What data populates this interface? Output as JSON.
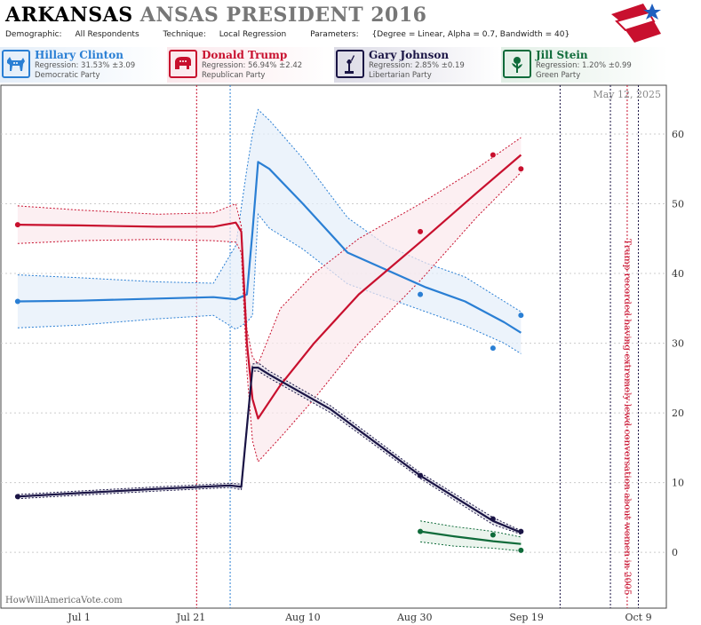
{
  "header": {
    "title_state": "ARKANSAS",
    "title_rest": "ANSAS PRESIDENT 2016",
    "demographic_label": "Demographic:",
    "demographic_value": "All Respondents",
    "technique_label": "Technique:",
    "technique_value": "Local Regression",
    "parameters_label": "Parameters:",
    "parameters_value": "{Degree = Linear, Alpha = 0.7, Bandwidth = 40}"
  },
  "candidates": [
    {
      "name": "Hillary Clinton",
      "regression": "Regression: 31.53% ±3.09",
      "party": "Democratic Party",
      "color": "#2a7fd4",
      "icon": "donkey-icon"
    },
    {
      "name": "Donald Trump",
      "regression": "Regression: 56.94% ±2.42",
      "party": "Republican Party",
      "color": "#c8102e",
      "icon": "elephant-icon"
    },
    {
      "name": "Gary Johnson",
      "regression": "Regression: 2.85% ±0.19",
      "party": "Libertarian Party",
      "color": "#1a1445",
      "icon": "liberty-statue-icon"
    },
    {
      "name": "Jill Stein",
      "regression": "Regression: 1.20% ±0.99",
      "party": "Green Party",
      "color": "#0f6b3a",
      "icon": "rose-icon"
    }
  ],
  "chart_data": {
    "type": "line",
    "date_label": "May 12, 2025",
    "watermark": "HowWillAmericaVote.com",
    "annotation": "Trump recorded having extremely lewd conversation about women in 2005",
    "x_ticks": [
      "Jul 1",
      "Jul 21",
      "Aug 10",
      "Aug 30",
      "Sep 19",
      "Oct 9"
    ],
    "y_ticks": [
      0,
      10,
      20,
      30,
      40,
      50,
      60
    ],
    "ylim": [
      -8,
      67
    ],
    "xlim": [
      "2016-06-17",
      "2016-10-14"
    ],
    "vertical_lines": [
      {
        "date": "2016-07-22",
        "color": "#c8102e"
      },
      {
        "date": "2016-07-28",
        "color": "#2a7fd4"
      },
      {
        "date": "2016-09-25",
        "color": "#1a1445"
      },
      {
        "date": "2016-10-04",
        "color": "#1a1445"
      },
      {
        "date": "2016-10-07",
        "color": "#c8102e"
      },
      {
        "date": "2016-10-09",
        "color": "#1a1445"
      }
    ],
    "series": [
      {
        "name": "Hillary Clinton",
        "color": "#2a7fd4",
        "fill": "#e4eef9",
        "x": [
          "2016-06-20",
          "2016-07-01",
          "2016-07-15",
          "2016-07-25",
          "2016-07-29",
          "2016-07-31",
          "2016-08-01",
          "2016-08-02",
          "2016-08-04",
          "2016-08-10",
          "2016-08-18",
          "2016-08-25",
          "2016-09-01",
          "2016-09-08",
          "2016-09-15",
          "2016-09-18"
        ],
        "y": [
          36.0,
          36.1,
          36.4,
          36.6,
          36.3,
          37.0,
          46.0,
          56.0,
          55.0,
          50.0,
          43.0,
          40.5,
          38.0,
          36.0,
          33.0,
          31.5
        ],
        "upper": [
          39.8,
          39.4,
          38.8,
          38.6,
          44.0,
          55.0,
          60.0,
          63.5,
          62.0,
          56.5,
          48.0,
          44.0,
          41.5,
          39.5,
          36.0,
          34.5
        ],
        "lower": [
          32.2,
          32.6,
          33.5,
          34.0,
          32.0,
          33.0,
          34.0,
          48.5,
          46.5,
          43.5,
          38.5,
          36.5,
          34.5,
          32.5,
          30.0,
          28.5
        ],
        "points": [
          [
            "2016-06-20",
            36
          ],
          [
            "2016-08-31",
            37
          ],
          [
            "2016-09-13",
            29.3
          ],
          [
            "2016-09-18",
            34
          ]
        ]
      },
      {
        "name": "Donald Trump",
        "color": "#c8102e",
        "fill": "#fbe8ec",
        "x": [
          "2016-06-20",
          "2016-07-01",
          "2016-07-15",
          "2016-07-25",
          "2016-07-29",
          "2016-07-30",
          "2016-07-31",
          "2016-08-01",
          "2016-08-02",
          "2016-08-06",
          "2016-08-12",
          "2016-08-20",
          "2016-08-31",
          "2016-09-10",
          "2016-09-18"
        ],
        "y": [
          47.0,
          46.9,
          46.7,
          46.7,
          47.3,
          46.0,
          30.0,
          22.0,
          19.2,
          24.0,
          30.0,
          37.0,
          44.5,
          51.5,
          57.0
        ],
        "upper": [
          49.7,
          49.1,
          48.5,
          48.7,
          50.0,
          46.8,
          32.0,
          28.0,
          27.0,
          35.0,
          40.0,
          45.0,
          50.0,
          55.0,
          59.5
        ],
        "lower": [
          44.3,
          44.7,
          44.9,
          44.7,
          44.5,
          43.0,
          26.0,
          16.0,
          13.0,
          16.5,
          22.0,
          30.0,
          39.0,
          48.0,
          54.5
        ],
        "points": [
          [
            "2016-06-20",
            47
          ],
          [
            "2016-08-31",
            46
          ],
          [
            "2016-09-13",
            57
          ],
          [
            "2016-09-18",
            55
          ]
        ]
      },
      {
        "name": "Gary Johnson",
        "color": "#1a1445",
        "fill": "#dcdbe6",
        "x": [
          "2016-06-20",
          "2016-07-01",
          "2016-07-15",
          "2016-07-28",
          "2016-07-30",
          "2016-08-01",
          "2016-08-02",
          "2016-08-04",
          "2016-08-15",
          "2016-08-31",
          "2016-09-13",
          "2016-09-18"
        ],
        "y": [
          8.0,
          8.5,
          9.1,
          9.6,
          9.4,
          26.5,
          26.5,
          25.5,
          20.5,
          11.0,
          4.5,
          2.85
        ],
        "upper": [
          8.3,
          8.8,
          9.4,
          9.9,
          9.8,
          27.0,
          27.2,
          26.0,
          21.0,
          11.4,
          5.0,
          3.1
        ],
        "lower": [
          7.7,
          8.2,
          8.8,
          9.3,
          9.0,
          26.0,
          26.0,
          25.0,
          20.0,
          10.6,
          4.0,
          2.6
        ],
        "points": [
          [
            "2016-06-20",
            8
          ],
          [
            "2016-08-31",
            11
          ],
          [
            "2016-09-13",
            4.8
          ],
          [
            "2016-09-18",
            3
          ]
        ]
      },
      {
        "name": "Jill Stein",
        "color": "#0f6b3a",
        "fill": "#e2efe6",
        "x": [
          "2016-08-31",
          "2016-09-06",
          "2016-09-13",
          "2016-09-18"
        ],
        "y": [
          3.0,
          2.3,
          1.6,
          1.2
        ],
        "upper": [
          4.5,
          3.7,
          3.0,
          2.2
        ],
        "lower": [
          1.5,
          0.9,
          0.6,
          0.2
        ],
        "points": [
          [
            "2016-08-31",
            3
          ],
          [
            "2016-09-13",
            2.5
          ],
          [
            "2016-09-18",
            0.3
          ]
        ]
      }
    ]
  }
}
